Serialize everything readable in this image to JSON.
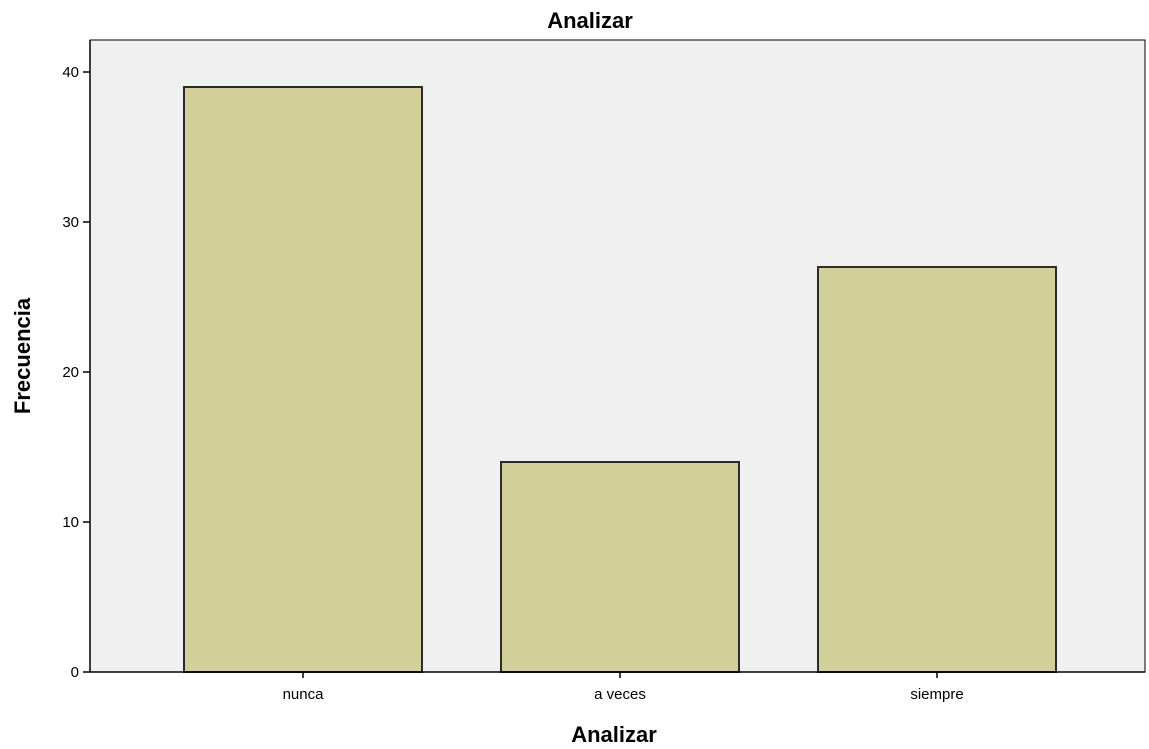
{
  "chart_data": {
    "type": "bar",
    "title": "Analizar",
    "xlabel": "Analizar",
    "ylabel": "Frecuencia",
    "categories": [
      "nunca",
      "a veces",
      "siempre"
    ],
    "values": [
      39,
      14,
      27
    ],
    "ylim": [
      0,
      42
    ],
    "yticks": [
      0,
      10,
      20,
      30,
      40
    ],
    "grid": false,
    "legend": "none",
    "colors": {
      "bar_fill": "#d3cf98",
      "bar_stroke": "#2b2b2b",
      "plot_background": "#f0f0f0",
      "axis": "#000000"
    }
  }
}
